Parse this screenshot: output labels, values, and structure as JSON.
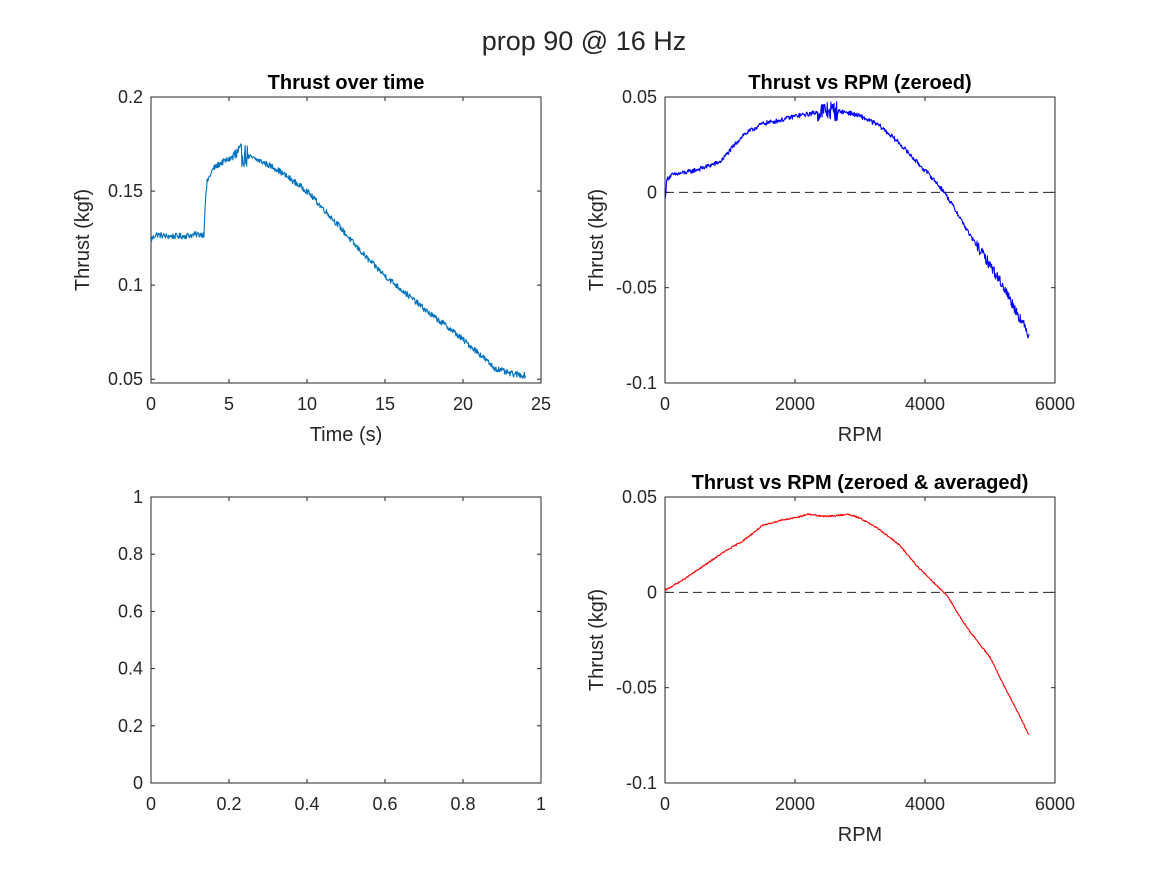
{
  "figure": {
    "title": "prop 90 @ 16 Hz"
  },
  "chart_data": [
    {
      "type": "line",
      "title": "Thrust over time",
      "xlabel": "Time (s)",
      "ylabel": "Thrust (kgf)",
      "xlim": [
        0,
        25
      ],
      "ylim": [
        0.048,
        0.2
      ],
      "xticks": [
        0,
        5,
        10,
        15,
        20,
        25
      ],
      "xtick_labels": [
        "0",
        "5",
        "10",
        "15",
        "20",
        "25"
      ],
      "yticks": [
        0.05,
        0.1,
        0.15,
        0.2
      ],
      "ytick_labels": [
        "0.05",
        "0.1",
        "0.15",
        "0.2"
      ],
      "grid": false,
      "refline": null,
      "series": [
        {
          "color": "#0072bd",
          "noise": 0.0016,
          "spikes": [
            [
              5.2,
              6.2,
              0.0045
            ]
          ],
          "x": [
            0,
            0.3,
            1,
            2,
            3,
            3.4,
            3.45,
            3.6,
            4,
            4.5,
            5,
            5.5,
            6,
            7,
            8,
            9,
            10,
            11,
            12,
            13,
            14,
            15,
            16,
            17,
            18,
            19,
            20,
            21,
            22,
            23,
            24
          ],
          "y": [
            0.124,
            0.127,
            0.126,
            0.126,
            0.127,
            0.127,
            0.141,
            0.155,
            0.162,
            0.165,
            0.167,
            0.169,
            0.169,
            0.166,
            0.162,
            0.156,
            0.15,
            0.141,
            0.132,
            0.122,
            0.113,
            0.105,
            0.098,
            0.091,
            0.084,
            0.078,
            0.071,
            0.064,
            0.056,
            0.053,
            0.052
          ]
        }
      ]
    },
    {
      "type": "line",
      "title": "Thrust vs RPM (zeroed)",
      "xlabel": "RPM",
      "ylabel": "Thrust (kgf)",
      "xlim": [
        0,
        6000
      ],
      "ylim": [
        -0.1,
        0.05
      ],
      "xticks": [
        0,
        2000,
        4000,
        6000
      ],
      "xtick_labels": [
        "0",
        "2000",
        "4000",
        "6000"
      ],
      "yticks": [
        -0.1,
        -0.05,
        0,
        0.05
      ],
      "ytick_labels": [
        "-0.1",
        "-0.05",
        "0",
        "0.05"
      ],
      "grid": false,
      "refline": 0,
      "series": [
        {
          "color": "#0000ff",
          "noise": 0.0012,
          "spikes": [
            [
              2350,
              2650,
              0.004
            ],
            [
              4800,
              5600,
              0.0015
            ]
          ],
          "x": [
            0,
            30,
            100,
            400,
            600,
            850,
            1000,
            1200,
            1500,
            1800,
            2000,
            2200,
            2500,
            2800,
            3000,
            3300,
            3600,
            3900,
            4100,
            4300,
            4500,
            4700,
            5000,
            5200,
            5400,
            5600
          ],
          "y": [
            -0.004,
            0.007,
            0.009,
            0.011,
            0.013,
            0.016,
            0.022,
            0.03,
            0.036,
            0.038,
            0.04,
            0.041,
            0.043,
            0.042,
            0.04,
            0.035,
            0.026,
            0.015,
            0.008,
            0.0,
            -0.011,
            -0.023,
            -0.038,
            -0.049,
            -0.062,
            -0.075
          ]
        }
      ]
    },
    {
      "type": "line",
      "title": "",
      "xlabel": "",
      "ylabel": "",
      "xlim": [
        0,
        1
      ],
      "ylim": [
        0,
        1
      ],
      "xticks": [
        0,
        0.2,
        0.4,
        0.6,
        0.8,
        1
      ],
      "xtick_labels": [
        "0",
        "0.2",
        "0.4",
        "0.6",
        "0.8",
        "1"
      ],
      "yticks": [
        0,
        0.2,
        0.4,
        0.6,
        0.8,
        1
      ],
      "ytick_labels": [
        "0",
        "0.2",
        "0.4",
        "0.6",
        "0.8",
        "1"
      ],
      "grid": false,
      "refline": null,
      "series": []
    },
    {
      "type": "line",
      "title": "Thrust vs RPM (zeroed & averaged)",
      "xlabel": "RPM",
      "ylabel": "Thrust (kgf)",
      "xlim": [
        0,
        6000
      ],
      "ylim": [
        -0.1,
        0.05
      ],
      "xticks": [
        0,
        2000,
        4000,
        6000
      ],
      "xtick_labels": [
        "0",
        "2000",
        "4000",
        "6000"
      ],
      "yticks": [
        -0.1,
        -0.05,
        0,
        0.05
      ],
      "ytick_labels": [
        "-0.1",
        "-0.05",
        "0",
        "0.05"
      ],
      "grid": false,
      "refline": 0,
      "series": [
        {
          "color": "#ff0000",
          "noise": 0.0004,
          "spikes": [],
          "x": [
            0,
            300,
            600,
            900,
            1200,
            1500,
            1800,
            2000,
            2200,
            2400,
            2600,
            2800,
            3000,
            3300,
            3600,
            3900,
            4200,
            4350,
            4500,
            4700,
            5000,
            5200,
            5400,
            5600
          ],
          "y": [
            0.001,
            0.007,
            0.014,
            0.021,
            0.027,
            0.035,
            0.038,
            0.039,
            0.041,
            0.04,
            0.04,
            0.041,
            0.039,
            0.033,
            0.025,
            0.013,
            0.003,
            -0.002,
            -0.011,
            -0.021,
            -0.034,
            -0.048,
            -0.061,
            -0.075
          ]
        }
      ]
    }
  ]
}
